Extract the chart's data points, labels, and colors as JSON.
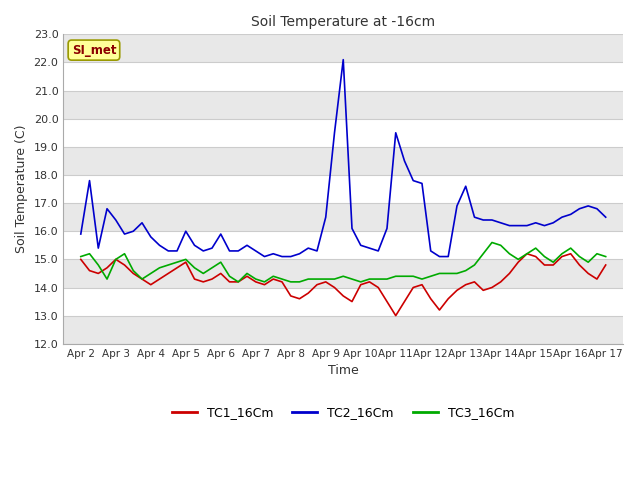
{
  "title": "Soil Temperature at -16cm",
  "xlabel": "Time",
  "ylabel": "Soil Temperature (C)",
  "ylim": [
    12.0,
    23.0
  ],
  "yticks": [
    12.0,
    13.0,
    14.0,
    15.0,
    16.0,
    17.0,
    18.0,
    19.0,
    20.0,
    21.0,
    22.0,
    23.0
  ],
  "fig_bg_color": "#ffffff",
  "plot_bg_color": "#ffffff",
  "band_colors": [
    "#e8e8e8",
    "#ffffff"
  ],
  "legend_label": "SI_met",
  "series_order": [
    "TC1_16Cm",
    "TC2_16Cm",
    "TC3_16Cm"
  ],
  "series": {
    "TC1_16Cm": {
      "color": "#cc0000",
      "x": [
        0,
        0.25,
        0.5,
        0.75,
        1.0,
        1.25,
        1.5,
        1.75,
        2.0,
        2.25,
        2.5,
        2.75,
        3.0,
        3.25,
        3.5,
        3.75,
        4.0,
        4.25,
        4.5,
        4.75,
        5.0,
        5.25,
        5.5,
        5.75,
        6.0,
        6.25,
        6.5,
        6.75,
        7.0,
        7.25,
        7.5,
        7.75,
        8.0,
        8.25,
        8.5,
        8.75,
        9.0,
        9.25,
        9.5,
        9.75,
        10.0,
        10.25,
        10.5,
        10.75,
        11.0,
        11.25,
        11.5,
        11.75,
        12.0,
        12.25,
        12.5,
        12.75,
        13.0,
        13.25,
        13.5,
        13.75,
        14.0,
        14.25,
        14.5,
        14.75,
        15.0
      ],
      "y": [
        15.0,
        14.6,
        14.5,
        14.7,
        15.0,
        14.8,
        14.5,
        14.3,
        14.1,
        14.3,
        14.5,
        14.7,
        14.9,
        14.3,
        14.2,
        14.3,
        14.5,
        14.2,
        14.2,
        14.4,
        14.2,
        14.1,
        14.3,
        14.2,
        13.7,
        13.6,
        13.8,
        14.1,
        14.2,
        14.0,
        13.7,
        13.5,
        14.1,
        14.2,
        14.0,
        13.5,
        13.0,
        13.5,
        14.0,
        14.1,
        13.6,
        13.2,
        13.6,
        13.9,
        14.1,
        14.2,
        13.9,
        14.0,
        14.2,
        14.5,
        14.9,
        15.2,
        15.1,
        14.8,
        14.8,
        15.1,
        15.2,
        14.8,
        14.5,
        14.3,
        14.8
      ]
    },
    "TC2_16Cm": {
      "color": "#0000cc",
      "x": [
        0,
        0.25,
        0.5,
        0.75,
        1.0,
        1.25,
        1.5,
        1.75,
        2.0,
        2.25,
        2.5,
        2.75,
        3.0,
        3.25,
        3.5,
        3.75,
        4.0,
        4.25,
        4.5,
        4.75,
        5.0,
        5.25,
        5.5,
        5.75,
        6.0,
        6.25,
        6.5,
        6.75,
        7.0,
        7.25,
        7.5,
        7.75,
        8.0,
        8.25,
        8.5,
        8.75,
        9.0,
        9.25,
        9.5,
        9.75,
        10.0,
        10.25,
        10.5,
        10.75,
        11.0,
        11.25,
        11.5,
        11.75,
        12.0,
        12.25,
        12.5,
        12.75,
        13.0,
        13.25,
        13.5,
        13.75,
        14.0,
        14.25,
        14.5,
        14.75,
        15.0
      ],
      "y": [
        15.9,
        17.8,
        15.4,
        16.8,
        16.4,
        15.9,
        16.0,
        16.3,
        15.8,
        15.5,
        15.3,
        15.3,
        16.0,
        15.5,
        15.3,
        15.4,
        15.9,
        15.3,
        15.3,
        15.5,
        15.3,
        15.1,
        15.2,
        15.1,
        15.1,
        15.2,
        15.4,
        15.3,
        16.5,
        19.5,
        22.1,
        16.1,
        15.5,
        15.4,
        15.3,
        16.1,
        19.5,
        18.5,
        17.8,
        17.7,
        15.3,
        15.1,
        15.1,
        16.9,
        17.6,
        16.5,
        16.4,
        16.4,
        16.3,
        16.2,
        16.2,
        16.2,
        16.3,
        16.2,
        16.3,
        16.5,
        16.6,
        16.8,
        16.9,
        16.8,
        16.5
      ]
    },
    "TC3_16Cm": {
      "color": "#00aa00",
      "x": [
        0,
        0.25,
        0.5,
        0.75,
        1.0,
        1.25,
        1.5,
        1.75,
        2.0,
        2.25,
        2.5,
        2.75,
        3.0,
        3.25,
        3.5,
        3.75,
        4.0,
        4.25,
        4.5,
        4.75,
        5.0,
        5.25,
        5.5,
        5.75,
        6.0,
        6.25,
        6.5,
        6.75,
        7.0,
        7.25,
        7.5,
        7.75,
        8.0,
        8.25,
        8.5,
        8.75,
        9.0,
        9.25,
        9.5,
        9.75,
        10.0,
        10.25,
        10.5,
        10.75,
        11.0,
        11.25,
        11.5,
        11.75,
        12.0,
        12.25,
        12.5,
        12.75,
        13.0,
        13.25,
        13.5,
        13.75,
        14.0,
        14.25,
        14.5,
        14.75,
        15.0
      ],
      "y": [
        15.1,
        15.2,
        14.8,
        14.3,
        15.0,
        15.2,
        14.6,
        14.3,
        14.5,
        14.7,
        14.8,
        14.9,
        15.0,
        14.7,
        14.5,
        14.7,
        14.9,
        14.4,
        14.2,
        14.5,
        14.3,
        14.2,
        14.4,
        14.3,
        14.2,
        14.2,
        14.3,
        14.3,
        14.3,
        14.3,
        14.4,
        14.3,
        14.2,
        14.3,
        14.3,
        14.3,
        14.4,
        14.4,
        14.4,
        14.3,
        14.4,
        14.5,
        14.5,
        14.5,
        14.6,
        14.8,
        15.2,
        15.6,
        15.5,
        15.2,
        15.0,
        15.2,
        15.4,
        15.1,
        14.9,
        15.2,
        15.4,
        15.1,
        14.9,
        15.2,
        15.1
      ]
    }
  },
  "xtick_labels": [
    "Apr 2",
    "Apr 3",
    "Apr 4",
    "Apr 5",
    "Apr 6",
    "Apr 7",
    "Apr 8",
    "Apr 9",
    "Apr 10",
    "Apr 11",
    "Apr 12",
    "Apr 13",
    "Apr 14",
    "Apr 15",
    "Apr 16",
    "Apr 17"
  ],
  "xtick_positions": [
    0,
    1,
    2,
    3,
    4,
    5,
    6,
    7,
    8,
    9,
    10,
    11,
    12,
    13,
    14,
    15
  ]
}
